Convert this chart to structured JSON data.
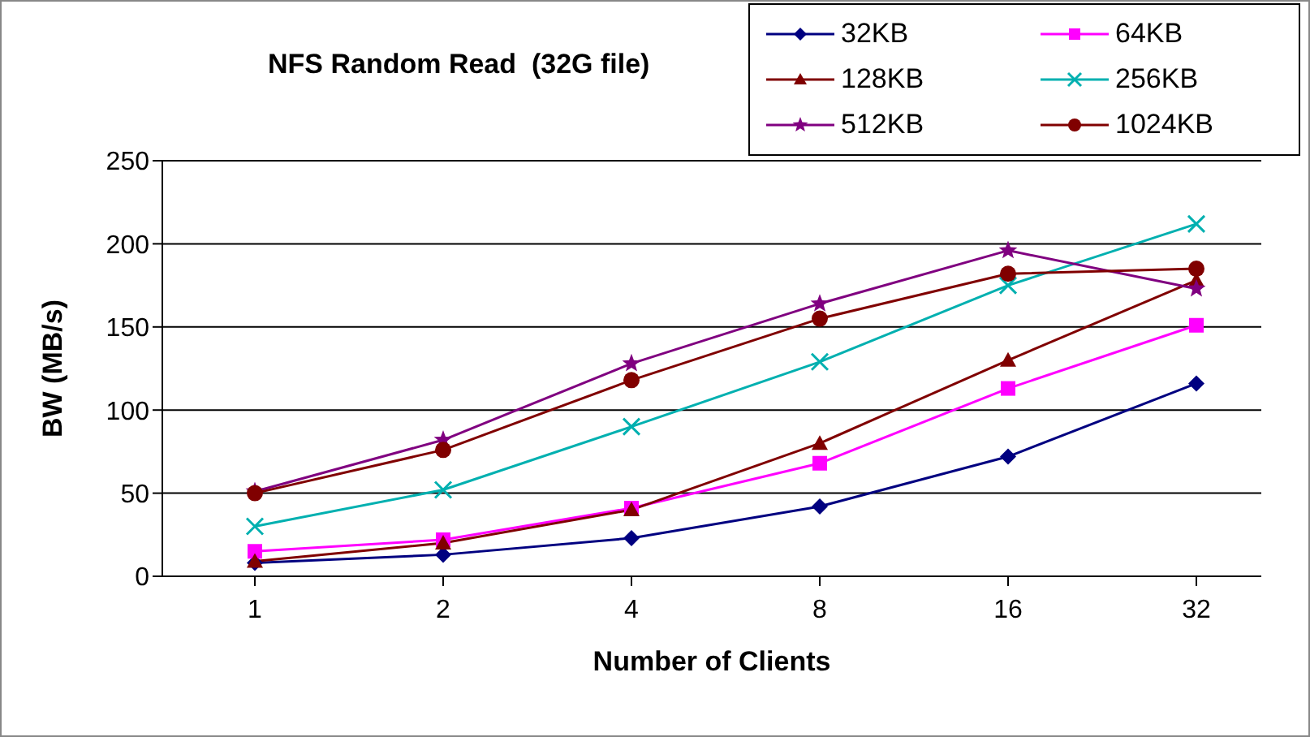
{
  "chart_data": {
    "type": "line",
    "title": "NFS Random Read  (32G file)",
    "xlabel": "Number of Clients",
    "ylabel": "BW (MB/s)",
    "categories": [
      "1",
      "2",
      "4",
      "8",
      "16",
      "32"
    ],
    "ylim": [
      0,
      250
    ],
    "yticks": [
      0,
      50,
      100,
      150,
      200,
      250
    ],
    "grid": "y",
    "legend": "top right",
    "series": [
      {
        "name": "32KB",
        "color": "#000080",
        "marker": "diamond",
        "values": [
          8,
          13,
          23,
          42,
          72,
          116
        ]
      },
      {
        "name": "64KB",
        "color": "#ff00ff",
        "marker": "square",
        "values": [
          15,
          22,
          41,
          68,
          113,
          151
        ]
      },
      {
        "name": "128KB",
        "color": "#800000",
        "marker": "triangle",
        "values": [
          9,
          20,
          40,
          80,
          130,
          178
        ]
      },
      {
        "name": "256KB",
        "color": "#00b0b0",
        "marker": "cross",
        "values": [
          30,
          52,
          90,
          129,
          175,
          212
        ]
      },
      {
        "name": "512KB",
        "color": "#800080",
        "marker": "star",
        "values": [
          51,
          82,
          128,
          164,
          196,
          173
        ]
      },
      {
        "name": "1024KB",
        "color": "#800000",
        "marker": "circle",
        "values": [
          50,
          76,
          118,
          155,
          182,
          185
        ]
      }
    ]
  }
}
